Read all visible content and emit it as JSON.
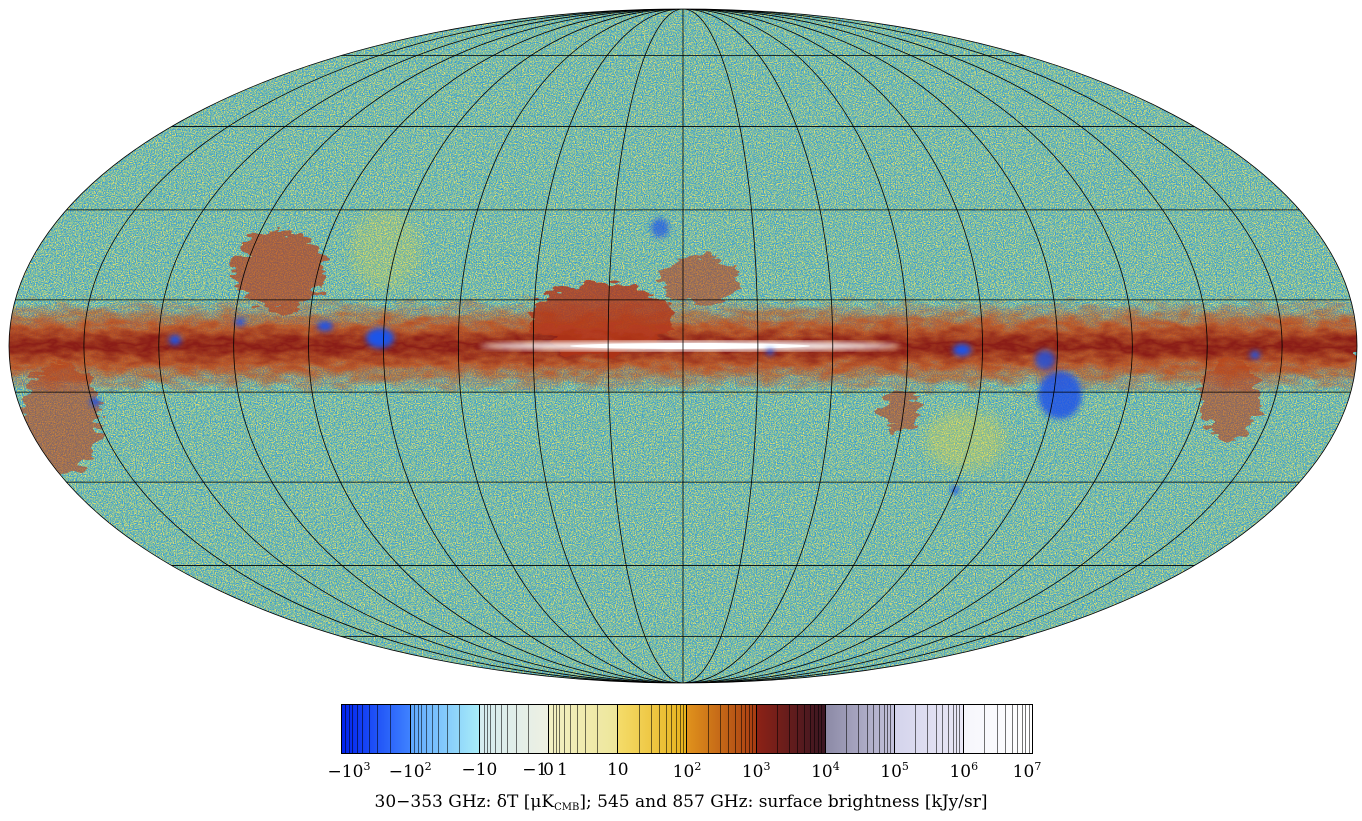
{
  "map": {
    "projection": "Mollweide",
    "coordinate_frame": "galactic",
    "graticule": {
      "meridian_step_deg": 20,
      "parallel_step_deg": 20,
      "color": "#000000"
    },
    "palette": [
      "#0033ee",
      "#3366ff",
      "#66c8ff",
      "#a4e4f2",
      "#e6edd8",
      "#eeec99",
      "#f2c61f",
      "#d97a1c",
      "#a63a16",
      "#6e1c24",
      "#b4b4d3",
      "#ffffff"
    ],
    "background_field_color": "#6fbfa0"
  },
  "colorbar": {
    "segments": [
      {
        "color_from": "#0022ee",
        "color_to": "#3f82ff"
      },
      {
        "color_from": "#5fa8ff",
        "color_to": "#a8ecf8"
      },
      {
        "color_from": "#d4ecf0",
        "color_to": "#eef0e2"
      },
      {
        "color_from": "#f2f0c4",
        "color_to": "#eee69a"
      },
      {
        "color_from": "#f4dc6a",
        "color_to": "#e8b21c"
      },
      {
        "color_from": "#e0921c",
        "color_to": "#a83c12"
      },
      {
        "color_from": "#8c2216",
        "color_to": "#3a1622"
      },
      {
        "color_from": "#8c8aa6",
        "color_to": "#c4c2dc"
      },
      {
        "color_from": "#d4d4ec",
        "color_to": "#eae8f6"
      },
      {
        "color_from": "#f6f6fc",
        "color_to": "#ffffff"
      }
    ],
    "tick_labels": [
      {
        "base": "−10",
        "exp": "3"
      },
      {
        "base": "−10",
        "exp": "2"
      },
      {
        "base": "−10",
        "exp": ""
      },
      {
        "base": "−1",
        "exp": ""
      },
      {
        "base": "0",
        "exp": ""
      },
      {
        "base": "1",
        "exp": ""
      },
      {
        "base": "10",
        "exp": ""
      },
      {
        "base": "10",
        "exp": "2"
      },
      {
        "base": "10",
        "exp": "3"
      },
      {
        "base": "10",
        "exp": "4"
      },
      {
        "base": "10",
        "exp": "5"
      },
      {
        "base": "10",
        "exp": "6"
      },
      {
        "base": "10",
        "exp": "7"
      }
    ]
  },
  "caption": {
    "prefix": "30−353 GHz: δT [μK",
    "sub": "CMB",
    "suffix": "]; 545 and 857 GHz: surface brightness [kJy/sr]"
  }
}
